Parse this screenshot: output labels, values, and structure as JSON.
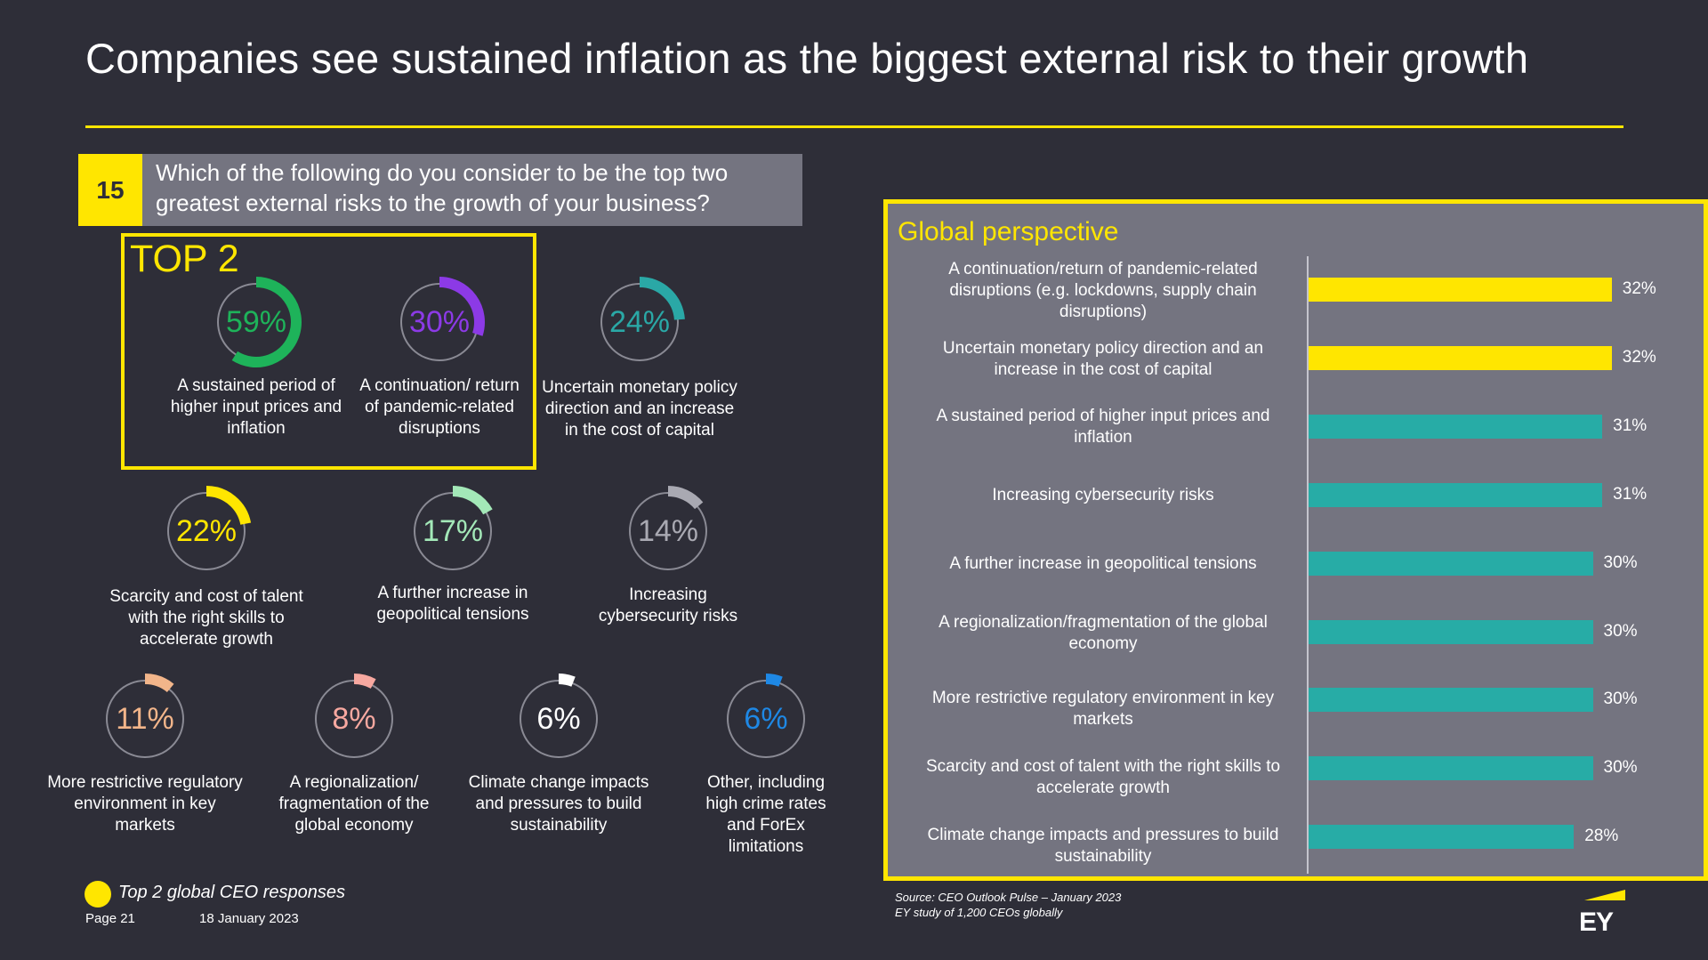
{
  "title": "Companies see sustained inflation as the biggest external risk to their growth",
  "question": {
    "number": "15",
    "text": "Which of the following do you consider to be the top two greatest external risks to the growth of your business?"
  },
  "top2_label": "TOP 2",
  "legend_text": "Top 2 global CEO responses",
  "footer": {
    "page": "Page 21",
    "date": "18 January 2023"
  },
  "source": {
    "line1": "Source: CEO Outlook Pulse – January 2023",
    "line2": "EY study of 1,200 CEOs globally"
  },
  "logo_text": "EY",
  "colors": {
    "background": "#2e2e38",
    "accent": "#ffe600",
    "panel": "#747480",
    "teal_bar": "#27aca6"
  },
  "chart_data": [
    {
      "type": "donut",
      "items": [
        {
          "label": "A sustained period of higher input prices and inflation",
          "value": 59,
          "display": "59%",
          "color": "#1eb35a",
          "top2": true
        },
        {
          "label": "A continuation/ return of pandemic-related disruptions",
          "value": 30,
          "display": "30%",
          "color": "#8c3ae6",
          "top2": true
        },
        {
          "label": "Uncertain monetary policy direction and an increase in the cost of capital",
          "value": 24,
          "display": "24%",
          "color": "#2aa8a6",
          "top2": false
        },
        {
          "label": "Scarcity and cost of talent with the right skills to accelerate growth",
          "value": 22,
          "display": "22%",
          "color": "#ffe600",
          "top2": false
        },
        {
          "label": "A further increase in geopolitical tensions",
          "value": 17,
          "display": "17%",
          "color": "#a3e8b8",
          "top2": false
        },
        {
          "label": "Increasing cybersecurity risks",
          "value": 14,
          "display": "14%",
          "color": "#a9a9b2",
          "top2": false
        },
        {
          "label": "More restrictive regulatory environment in key markets",
          "value": 11,
          "display": "11%",
          "color": "#f2b58a",
          "top2": false
        },
        {
          "label": "A regionalization/ fragmentation of the global economy",
          "value": 8,
          "display": "8%",
          "color": "#f7a8a0",
          "top2": false
        },
        {
          "label": "Climate change impacts and pressures to build sustainability",
          "value": 6,
          "display": "6%",
          "color": "#ffffff",
          "top2": false
        },
        {
          "label": "Other, including high crime rates and ForEx limitations",
          "value": 6,
          "display": "6%",
          "color": "#1e88e5",
          "top2": false
        }
      ]
    },
    {
      "type": "bar",
      "title": "Global perspective",
      "orientation": "horizontal",
      "categories": [
        "A continuation/return of pandemic-related disruptions (e.g. lockdowns, supply chain disruptions)",
        "Uncertain monetary policy direction and an increase in the cost of capital",
        "A sustained period of higher input prices and inflation",
        "Increasing cybersecurity risks",
        "A further increase in geopolitical tensions",
        "A regionalization/fragmentation of the global economy",
        "More restrictive regulatory environment in key markets",
        "Scarcity and cost of talent with the right skills to accelerate growth",
        "Climate change impacts and pressures to build sustainability"
      ],
      "values": [
        32,
        32,
        31,
        31,
        30,
        30,
        30,
        30,
        28
      ],
      "value_labels": [
        "32%",
        "32%",
        "31%",
        "31%",
        "30%",
        "30%",
        "30%",
        "30%",
        "28%"
      ],
      "highlight": [
        true,
        true,
        false,
        false,
        false,
        false,
        false,
        false,
        false
      ],
      "grid": false
    }
  ]
}
